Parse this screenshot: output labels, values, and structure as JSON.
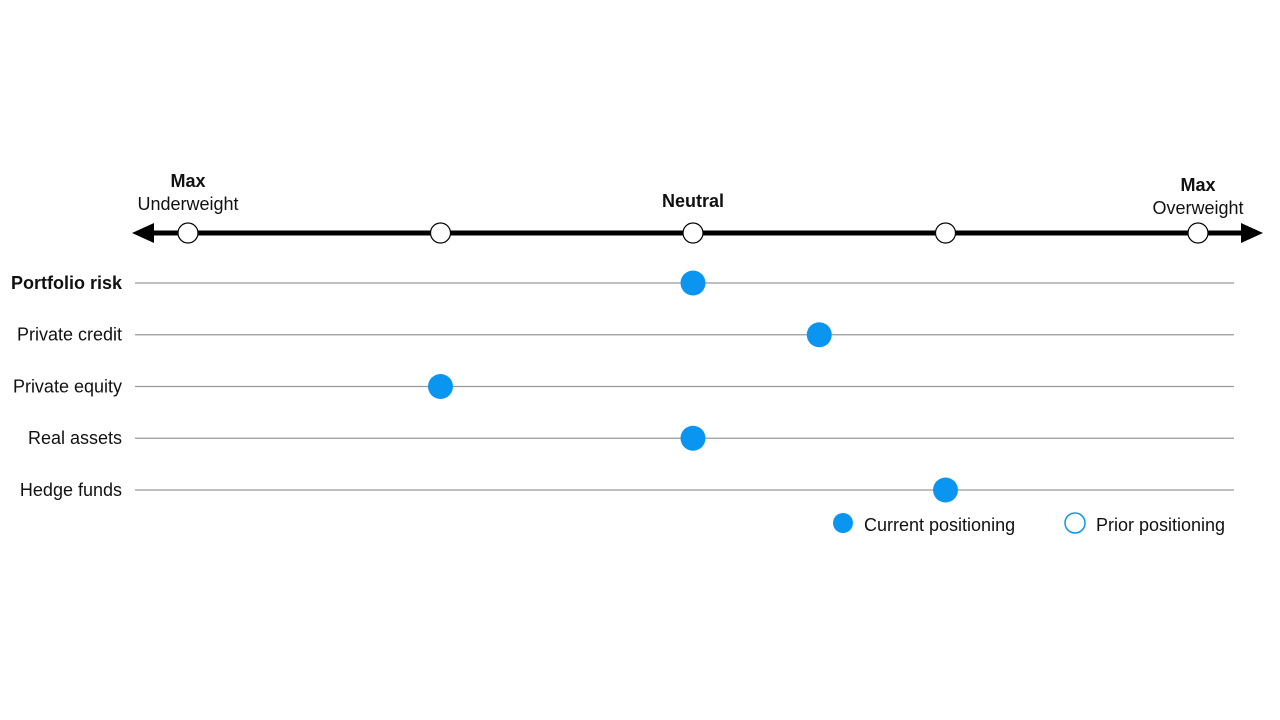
{
  "chart_data": {
    "type": "dot",
    "categories": [
      "Portfolio risk",
      "Private credit",
      "Private equity",
      "Real assets",
      "Hedge funds"
    ],
    "bold_first_category": true,
    "series": [
      {
        "name": "Current positioning",
        "color": "#0a96f0",
        "hollow": false,
        "values": [
          0,
          0.5,
          -1,
          0,
          1
        ]
      },
      {
        "name": "Prior positioning",
        "color": "#0a96f0",
        "hollow": true,
        "values": [
          null,
          null,
          null,
          null,
          null
        ]
      }
    ],
    "xlim": [
      -2.2,
      2.2
    ],
    "xticks": [
      {
        "value": -2,
        "label": {
          "emphasis": "Max",
          "text": "Underweight"
        }
      },
      {
        "value": -1
      },
      {
        "value": 0,
        "label": {
          "emphasis": "Neutral"
        }
      },
      {
        "value": 1
      },
      {
        "value": 2,
        "label": {
          "emphasis": "Max",
          "text": "Overweight"
        }
      }
    ]
  }
}
